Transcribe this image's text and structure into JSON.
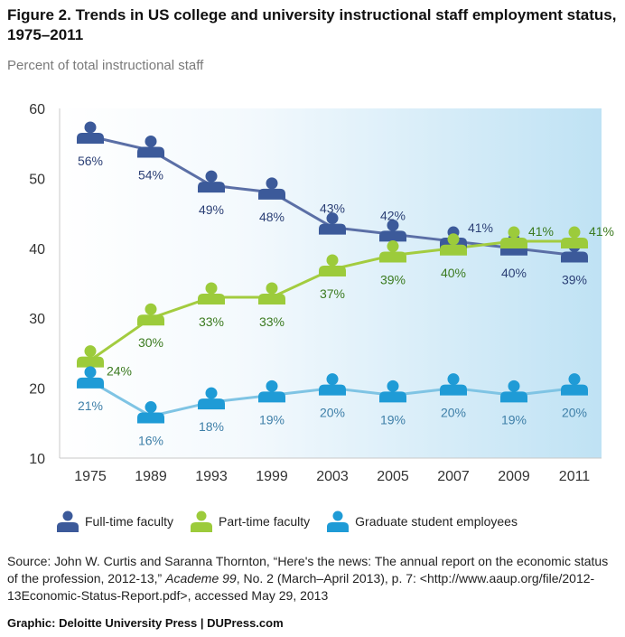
{
  "title": "Figure 2. Trends in US college and university instructional staff employment status, 1975–2011",
  "chart_data": {
    "type": "line",
    "title": "Figure 2. Trends in US college and university instructional staff employment status, 1975–2011",
    "ylabel": "Percent of total instructional staff",
    "xlabel": "",
    "categories": [
      "1975",
      "1989",
      "1993",
      "1999",
      "2003",
      "2005",
      "2007",
      "2009",
      "2011"
    ],
    "ylim": [
      10,
      60
    ],
    "yticks": [
      10,
      20,
      30,
      40,
      50,
      60
    ],
    "grid": false,
    "legend_position": "bottom",
    "series": [
      {
        "name": "Full-time faculty",
        "values": [
          56,
          54,
          49,
          48,
          43,
          42,
          41,
          40,
          39
        ],
        "labels": [
          "56%",
          "54%",
          "49%",
          "48%",
          "43%",
          "42%",
          "41%",
          "40%",
          "39%"
        ],
        "color": "#5b6fa6",
        "icon_color": "#3c5a9a",
        "label_color": "#2b3f75"
      },
      {
        "name": "Part-time faculty",
        "values": [
          24,
          30,
          33,
          33,
          37,
          39,
          40,
          41,
          41
        ],
        "labels": [
          "24%",
          "30%",
          "33%",
          "33%",
          "37%",
          "39%",
          "40%",
          "41%",
          "41%"
        ],
        "color": "#a3cc3f",
        "icon_color": "#9ccb3b",
        "label_color": "#3b7a1f"
      },
      {
        "name": "Graduate student employees",
        "values": [
          21,
          16,
          18,
          19,
          20,
          19,
          20,
          19,
          20
        ],
        "labels": [
          "21%",
          "16%",
          "18%",
          "19%",
          "20%",
          "19%",
          "20%",
          "19%",
          "20%"
        ],
        "color": "#7fc4e4",
        "icon_color": "#1f9bd6",
        "label_color": "#3e7fa8"
      }
    ]
  },
  "legend": [
    "Full-time faculty",
    "Part-time faculty",
    "Graduate student employees"
  ],
  "source": {
    "prefix": "Source: John W. Curtis and Saranna Thornton, “Here's the news: The annual report on the economic status of the profession, 2012-13,” ",
    "publication": "Academe 99",
    "suffix": ", No. 2 (March–April 2013), p. 7: <http://www.aaup.org/file/2012-13Economic-Status-Report.pdf>, accessed May 29, 2013"
  },
  "credit": "Graphic: Deloitte University Press  |  DUPress.com"
}
